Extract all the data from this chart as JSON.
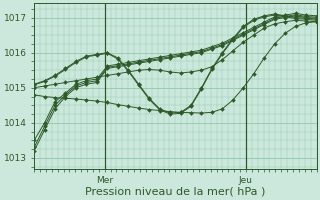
{
  "bg_color": "#cce8dc",
  "grid_color": "#99ccb3",
  "line_color": "#2d5a27",
  "marker_color": "#2d5a27",
  "xlabel": "Pression niveau de la mer( hPa )",
  "yticks": [
    1013,
    1014,
    1015,
    1016,
    1017
  ],
  "ylim": [
    1012.7,
    1017.4
  ],
  "xlim": [
    0,
    48
  ],
  "xtick_positions": [
    12,
    36
  ],
  "xtick_labels": [
    "Mer",
    "Jeu"
  ],
  "vline_positions": [
    12,
    36
  ],
  "series": [
    [
      1013.2,
      1013.8,
      1014.4,
      1014.75,
      1015.0,
      1015.1,
      1015.15,
      1015.55,
      1015.6,
      1015.65,
      1015.7,
      1015.75,
      1015.8,
      1015.85,
      1015.9,
      1015.95,
      1016.0,
      1016.1,
      1016.2,
      1016.35,
      1016.5,
      1016.65,
      1016.8,
      1016.95,
      1017.0,
      1017.05,
      1017.0,
      1016.98
    ],
    [
      1013.3,
      1013.9,
      1014.5,
      1014.8,
      1015.05,
      1015.15,
      1015.2,
      1015.58,
      1015.63,
      1015.68,
      1015.73,
      1015.78,
      1015.83,
      1015.88,
      1015.93,
      1015.98,
      1016.03,
      1016.13,
      1016.23,
      1016.38,
      1016.53,
      1016.68,
      1016.83,
      1016.98,
      1017.03,
      1017.08,
      1017.03,
      1017.01
    ],
    [
      1013.5,
      1014.0,
      1014.6,
      1014.85,
      1015.1,
      1015.2,
      1015.25,
      1015.62,
      1015.67,
      1015.72,
      1015.77,
      1015.82,
      1015.87,
      1015.92,
      1015.97,
      1016.02,
      1016.07,
      1016.17,
      1016.27,
      1016.42,
      1016.57,
      1016.72,
      1016.87,
      1017.02,
      1017.07,
      1017.12,
      1017.07,
      1017.05
    ],
    [
      1014.8,
      1014.75,
      1014.72,
      1014.7,
      1014.68,
      1014.65,
      1014.62,
      1014.58,
      1014.52,
      1014.47,
      1014.42,
      1014.38,
      1014.35,
      1014.32,
      1014.3,
      1014.29,
      1014.28,
      1014.3,
      1014.4,
      1014.65,
      1015.0,
      1015.4,
      1015.85,
      1016.25,
      1016.55,
      1016.75,
      1016.85,
      1016.88
    ],
    [
      1015.0,
      1015.05,
      1015.1,
      1015.15,
      1015.2,
      1015.25,
      1015.3,
      1015.35,
      1015.4,
      1015.45,
      1015.5,
      1015.52,
      1015.5,
      1015.45,
      1015.42,
      1015.45,
      1015.5,
      1015.6,
      1015.8,
      1016.05,
      1016.3,
      1016.5,
      1016.7,
      1016.82,
      1016.88,
      1016.92,
      1016.9,
      1016.88
    ],
    [
      1015.1,
      1015.2,
      1015.35,
      1015.55,
      1015.75,
      1015.9,
      1015.95,
      1016.0,
      1015.85,
      1015.5,
      1015.1,
      1014.7,
      1014.4,
      1014.28,
      1014.3,
      1014.5,
      1015.0,
      1015.55,
      1016.0,
      1016.4,
      1016.75,
      1016.95,
      1017.05,
      1017.1,
      1017.05,
      1017.0,
      1016.98,
      1016.95
    ],
    [
      1015.08,
      1015.18,
      1015.33,
      1015.52,
      1015.72,
      1015.88,
      1015.93,
      1015.98,
      1015.82,
      1015.47,
      1015.07,
      1014.67,
      1014.37,
      1014.25,
      1014.27,
      1014.47,
      1014.97,
      1015.52,
      1015.97,
      1016.37,
      1016.72,
      1016.92,
      1017.02,
      1017.07,
      1017.02,
      1016.97,
      1016.95,
      1016.92
    ]
  ],
  "xlabel_fontsize": 8,
  "tick_fontsize": 6.5
}
